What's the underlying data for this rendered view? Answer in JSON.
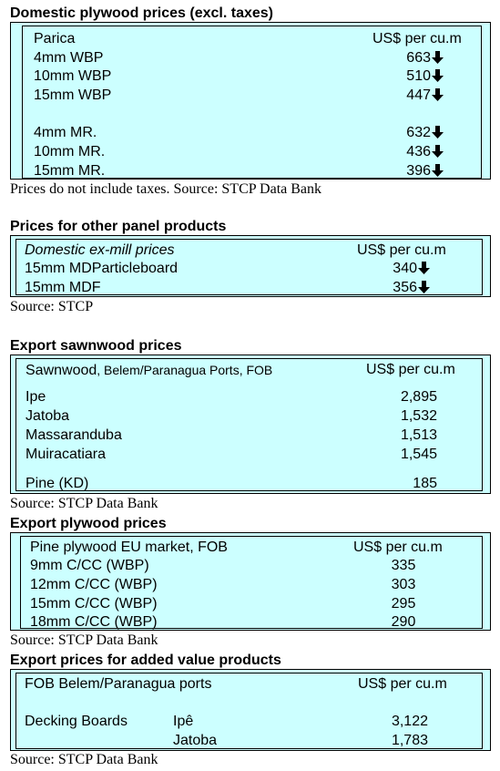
{
  "domestic_plywood": {
    "heading": "Domestic plywood prices (excl. taxes)",
    "col_label": "Parica",
    "col_unit": "US$ per cu.m",
    "rows": [
      {
        "label": "4mm WBP",
        "value": "663",
        "trend": "down"
      },
      {
        "label": "10mm WBP",
        "value": "510",
        "trend": "down"
      },
      {
        "label": "15mm WBP",
        "value": "447",
        "trend": "down"
      },
      {
        "label": "4mm MR.",
        "value": "632",
        "trend": "down"
      },
      {
        "label": "10mm MR.",
        "value": "436",
        "trend": "down"
      },
      {
        "label": "15mm MR.",
        "value": "396",
        "trend": "down"
      }
    ],
    "source": "Prices do not include taxes. Source: STCP Data Bank"
  },
  "other_panels": {
    "heading": "Prices for other panel products",
    "col_label": "Domestic ex-mill prices",
    "col_unit": "US$ per cu.m",
    "rows": [
      {
        "label": "15mm MDParticleboard",
        "value": "340",
        "trend": "down"
      },
      {
        "label": "15mm MDF",
        "value": "356",
        "trend": "down"
      }
    ],
    "source": "Source: STCP"
  },
  "export_sawnwood": {
    "heading": "Export sawnwood prices",
    "col_label": "Sawnwood",
    "col_label_small": ", Belem/Paranagua Ports, FOB",
    "col_unit": "US$ per cu.m",
    "rows": [
      {
        "label": "Ipe",
        "value": "2,895"
      },
      {
        "label": "Jatoba",
        "value": "1,532"
      },
      {
        "label": "Massaranduba",
        "value": "1,513"
      },
      {
        "label": "Muiracatiara",
        "value": "1,545"
      },
      {
        "label": "Pine (KD)",
        "value": "185"
      }
    ],
    "source": "Source: STCP Data Bank"
  },
  "export_plywood": {
    "heading": "Export plywood prices",
    "col_label": "Pine plywood EU market, FOB",
    "col_unit": "US$ per cu.m",
    "rows": [
      {
        "label": "9mm C/CC (WBP)",
        "value": "335"
      },
      {
        "label": "12mm C/CC (WBP)",
        "value": "303"
      },
      {
        "label": "15mm C/CC (WBP)",
        "value": "295"
      },
      {
        "label": "18mm C/CC (WBP)",
        "value": "290"
      }
    ],
    "source": "Source: STCP Data Bank"
  },
  "added_value": {
    "heading": "Export prices for added value products",
    "col_label": "FOB Belem/Paranagua ports",
    "col_unit": "US$ per cu.m",
    "product": "Decking Boards",
    "rows": [
      {
        "label": "Ipê",
        "value": "3,122"
      },
      {
        "label": "Jatoba",
        "value": "1,783"
      }
    ],
    "source": "Source: STCP Data Bank"
  },
  "icons": {
    "trend_down": "down-arrow-icon"
  }
}
